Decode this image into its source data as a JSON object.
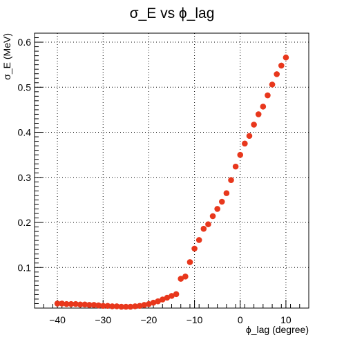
{
  "chart_data": {
    "type": "scatter",
    "title": "σ_E vs ϕ_lag",
    "xlabel": "ϕ_lag (degree)",
    "ylabel": "σ_E (MeV)",
    "xlim": [
      -45,
      15
    ],
    "ylim": [
      0.01,
      0.62
    ],
    "xticks": [
      -40,
      -30,
      -20,
      -10,
      0,
      10
    ],
    "xtick_labels": [
      "−40",
      "−30",
      "−20",
      "−10",
      "0",
      "10"
    ],
    "yticks": [
      0.1,
      0.2,
      0.3,
      0.4,
      0.5,
      0.6
    ],
    "ytick_labels": [
      "0.1",
      "0.2",
      "0.3",
      "0.4",
      "0.5",
      "0.6"
    ],
    "grid": true,
    "marker_color": "#e8371c",
    "x": [
      -40,
      -39,
      -38,
      -37,
      -36,
      -35,
      -34,
      -33,
      -32,
      -31,
      -30,
      -29,
      -28,
      -27,
      -26,
      -25,
      -24,
      -23,
      -22,
      -21,
      -20,
      -19,
      -18,
      -17,
      -16,
      -15,
      -14,
      -13,
      -12,
      -11,
      -10,
      -9,
      -8,
      -7,
      -6,
      -5,
      -4,
      -3,
      -2,
      -1,
      0,
      1,
      2,
      3,
      4,
      5,
      6,
      7,
      8,
      9,
      10
    ],
    "y": [
      0.02,
      0.02,
      0.019,
      0.019,
      0.019,
      0.018,
      0.018,
      0.017,
      0.017,
      0.016,
      0.015,
      0.015,
      0.014,
      0.014,
      0.013,
      0.013,
      0.013,
      0.014,
      0.015,
      0.017,
      0.019,
      0.022,
      0.025,
      0.029,
      0.033,
      0.037,
      0.041,
      0.075,
      0.08,
      0.112,
      0.142,
      0.161,
      0.186,
      0.196,
      0.214,
      0.23,
      0.246,
      0.265,
      0.294,
      0.324,
      0.35,
      0.375,
      0.392,
      0.417,
      0.44,
      0.457,
      0.482,
      0.506,
      0.529,
      0.548,
      0.566
    ]
  }
}
